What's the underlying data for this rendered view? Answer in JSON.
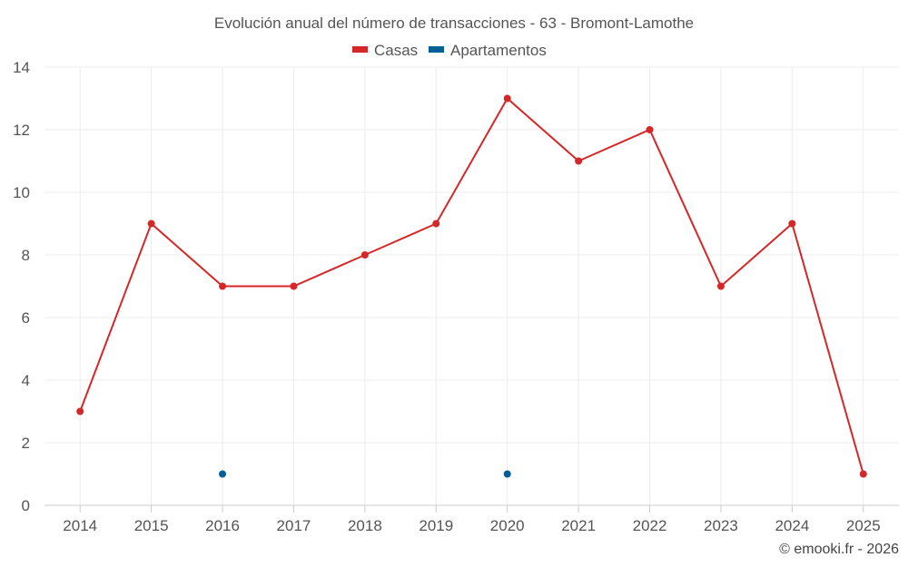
{
  "chart_data": {
    "type": "line",
    "title": "Evolución anual del número de transacciones - 63 - Bromont-Lamothe",
    "x": [
      "2014",
      "2015",
      "2016",
      "2017",
      "2018",
      "2019",
      "2020",
      "2021",
      "2022",
      "2023",
      "2024",
      "2025"
    ],
    "series": [
      {
        "name": "Casas",
        "color": "#d62728",
        "values": [
          3,
          9,
          7,
          7,
          8,
          9,
          13,
          11,
          12,
          7,
          9,
          1
        ]
      },
      {
        "name": "Apartamentos",
        "color": "#005f96",
        "values": [
          null,
          null,
          1,
          null,
          null,
          null,
          1,
          null,
          null,
          null,
          null,
          null
        ]
      }
    ],
    "yticks": [
      "0",
      "2",
      "4",
      "6",
      "8",
      "10",
      "12",
      "14"
    ],
    "ylim": [
      0,
      14
    ],
    "xlabel": "",
    "ylabel": "",
    "grid": true,
    "legend": "top-center"
  },
  "credit": "© emooki.fr - 2026"
}
